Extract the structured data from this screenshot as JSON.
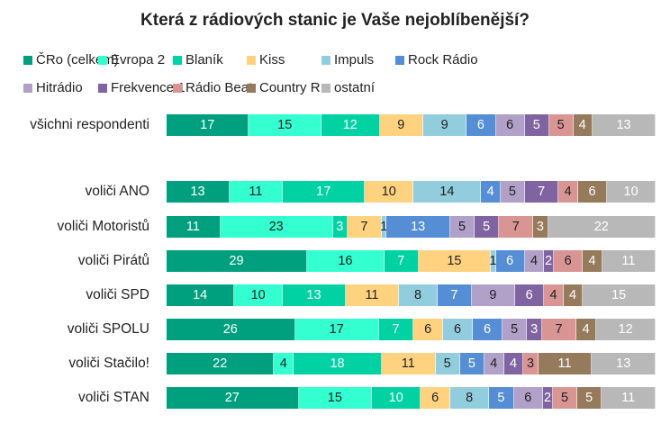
{
  "chart_data": {
    "type": "bar",
    "orientation": "horizontal",
    "stacked": true,
    "title": "Která z rádiových stanic je Vaše nejoblíbenější?",
    "legend_position": "top",
    "categories": [
      "všichni respondenti",
      "voliči ANO",
      "voliči Motoristů",
      "voliči Pirátů",
      "voliči SPD",
      "voliči SPOLU",
      "voliči Stačilo!",
      "voliči STAN"
    ],
    "series": [
      {
        "name": "ČRo (celkem)",
        "color": "#00A07E",
        "label_color": "#ffffff",
        "values": [
          17,
          13,
          11,
          29,
          14,
          26,
          22,
          27
        ]
      },
      {
        "name": "Evropa 2",
        "color": "#33FFD0",
        "label_color": "#222222",
        "values": [
          15,
          11,
          23,
          16,
          10,
          17,
          4,
          15
        ]
      },
      {
        "name": "Blaník",
        "color": "#00D2A4",
        "label_color": "#ffffff",
        "values": [
          12,
          17,
          3,
          7,
          13,
          7,
          18,
          10
        ]
      },
      {
        "name": "Kiss",
        "color": "#FFD280",
        "label_color": "#222222",
        "values": [
          9,
          10,
          7,
          15,
          11,
          6,
          11,
          6
        ]
      },
      {
        "name": "Impuls",
        "color": "#92CDDE",
        "label_color": "#222222",
        "values": [
          9,
          14,
          1,
          1,
          8,
          6,
          5,
          8
        ]
      },
      {
        "name": "Rock Rádio",
        "color": "#558ED5",
        "label_color": "#ffffff",
        "values": [
          6,
          4,
          13,
          6,
          7,
          6,
          5,
          5
        ]
      },
      {
        "name": "Hitrádio",
        "color": "#B1A0C7",
        "label_color": "#222222",
        "values": [
          6,
          5,
          5,
          4,
          9,
          5,
          4,
          6
        ]
      },
      {
        "name": "Frekvence 1",
        "color": "#8064A2",
        "label_color": "#ffffff",
        "values": [
          5,
          7,
          5,
          2,
          6,
          3,
          4,
          2
        ]
      },
      {
        "name": "Rádio Beat",
        "color": "#D99594",
        "label_color": "#222222",
        "values": [
          5,
          4,
          7,
          6,
          4,
          7,
          3,
          5
        ]
      },
      {
        "name": "Country R.",
        "color": "#967A5C",
        "label_color": "#ffffff",
        "values": [
          4,
          6,
          3,
          4,
          4,
          4,
          11,
          5
        ]
      },
      {
        "name": "ostatní",
        "color": "#B8B8B8",
        "label_color": "#ffffff",
        "values": [
          13,
          10,
          22,
          11,
          15,
          12,
          13,
          11
        ]
      }
    ]
  }
}
